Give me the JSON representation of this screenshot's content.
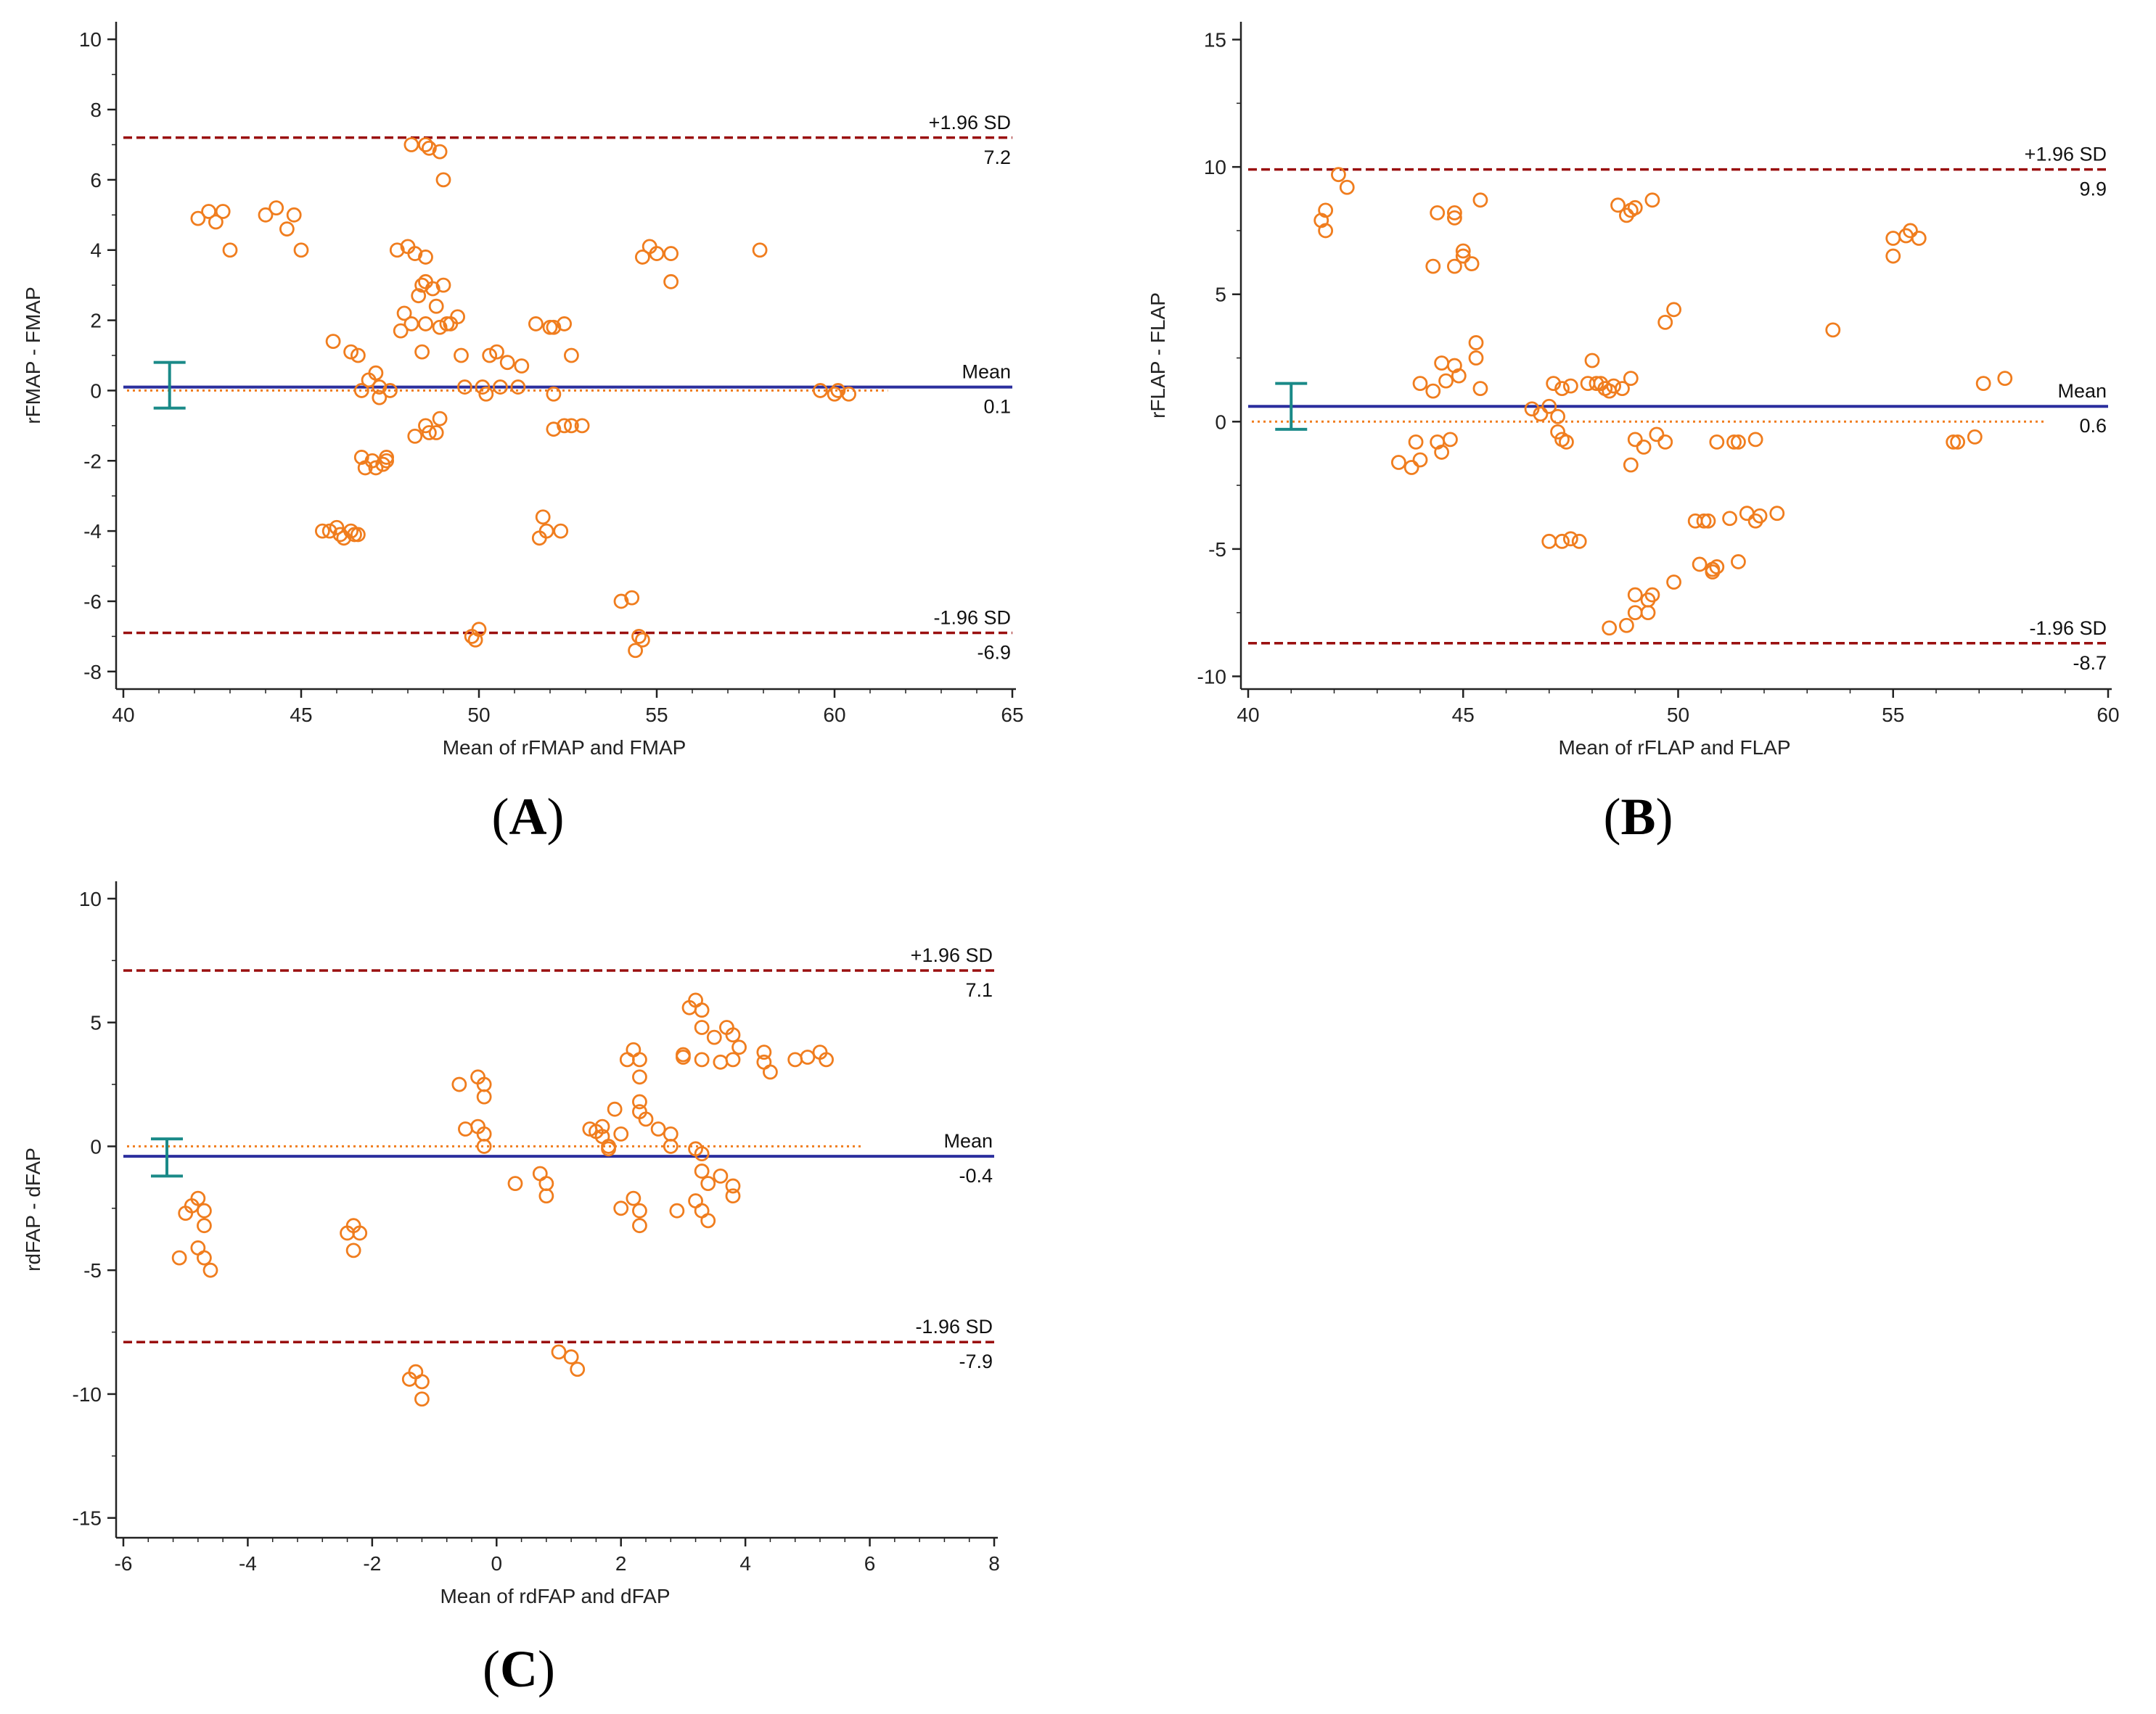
{
  "colors": {
    "points": "#f07d1e",
    "mean_line": "#2b2f9e",
    "zero_line": "#f07d1e",
    "sd_line": "#9a1010",
    "ci_bar": "#1a8a88",
    "axis": "#222222"
  },
  "chart_data": [
    {
      "id": "A",
      "panel_label": "(A)",
      "panel_letter": "A",
      "type": "scatter",
      "subtype": "bland-altman",
      "xlabel": "Mean of rFMAP and FMAP",
      "ylabel": "rFMAP - FMAP",
      "xlim": [
        40,
        65
      ],
      "ylim": [
        -8.5,
        10.5
      ],
      "xticks": [
        40,
        45,
        50,
        55,
        60,
        65
      ],
      "xtick_labels": [
        "40",
        "45",
        "50",
        "55",
        "60",
        "65"
      ],
      "yticks": [
        -8,
        -6,
        -4,
        -2,
        0,
        2,
        4,
        6,
        8,
        10
      ],
      "ytick_labels": [
        "-8",
        "-6",
        "-4",
        "-2",
        "0",
        "2",
        "4",
        "6",
        "8",
        "10"
      ],
      "mean": 0.1,
      "mean_title": "Mean",
      "mean_value": "0.1",
      "upper_loa": 7.2,
      "upper_title": "+1.96 SD",
      "upper_value": "7.2",
      "lower_loa": -6.9,
      "lower_title": "-1.96 SD",
      "lower_value": "-6.9",
      "zero_line_end_x": 61.5,
      "ci": {
        "x": 41.3,
        "low": -0.5,
        "high": 0.8
      },
      "points": [
        [
          42.1,
          4.9
        ],
        [
          42.4,
          5.1
        ],
        [
          42.6,
          4.8
        ],
        [
          42.8,
          5.1
        ],
        [
          43.0,
          4.0
        ],
        [
          44.0,
          5.0
        ],
        [
          44.3,
          5.2
        ],
        [
          44.6,
          4.6
        ],
        [
          44.8,
          5.0
        ],
        [
          45.0,
          4.0
        ],
        [
          45.6,
          -4.0
        ],
        [
          45.8,
          -4.0
        ],
        [
          45.9,
          1.4
        ],
        [
          46.0,
          -3.9
        ],
        [
          46.1,
          -4.1
        ],
        [
          46.2,
          -4.2
        ],
        [
          46.4,
          -4.0
        ],
        [
          46.5,
          -4.1
        ],
        [
          46.4,
          1.1
        ],
        [
          46.6,
          -4.1
        ],
        [
          46.6,
          1.0
        ],
        [
          46.7,
          -1.9
        ],
        [
          46.8,
          -2.2
        ],
        [
          46.7,
          0.0
        ],
        [
          46.9,
          0.3
        ],
        [
          47.0,
          -2.0
        ],
        [
          47.1,
          -2.2
        ],
        [
          47.1,
          0.5
        ],
        [
          47.2,
          -0.2
        ],
        [
          47.2,
          0.1
        ],
        [
          47.3,
          -2.1
        ],
        [
          47.4,
          -2.0
        ],
        [
          47.4,
          -1.9
        ],
        [
          47.5,
          0.0
        ],
        [
          47.7,
          4.0
        ],
        [
          47.8,
          1.7
        ],
        [
          47.9,
          2.2
        ],
        [
          48.0,
          4.1
        ],
        [
          48.1,
          1.9
        ],
        [
          48.2,
          3.9
        ],
        [
          48.2,
          -1.3
        ],
        [
          48.3,
          2.7
        ],
        [
          48.4,
          1.1
        ],
        [
          48.4,
          3.0
        ],
        [
          48.5,
          3.8
        ],
        [
          48.5,
          1.9
        ],
        [
          48.5,
          -1.0
        ],
        [
          48.6,
          -1.2
        ],
        [
          48.5,
          3.1
        ],
        [
          48.7,
          2.9
        ],
        [
          48.8,
          -1.2
        ],
        [
          48.8,
          2.4
        ],
        [
          48.9,
          -0.8
        ],
        [
          48.9,
          1.8
        ],
        [
          49.0,
          3.0
        ],
        [
          49.0,
          6.0
        ],
        [
          49.1,
          1.9
        ],
        [
          49.2,
          1.9
        ],
        [
          48.1,
          7.0
        ],
        [
          48.5,
          7.0
        ],
        [
          48.9,
          6.8
        ],
        [
          48.6,
          6.9
        ],
        [
          49.4,
          2.1
        ],
        [
          49.5,
          1.0
        ],
        [
          49.6,
          0.1
        ],
        [
          49.8,
          -7.0
        ],
        [
          49.9,
          -7.1
        ],
        [
          50.0,
          -6.8
        ],
        [
          50.1,
          0.1
        ],
        [
          50.2,
          -0.1
        ],
        [
          50.3,
          1.0
        ],
        [
          50.5,
          1.1
        ],
        [
          50.6,
          0.1
        ],
        [
          50.8,
          0.8
        ],
        [
          51.1,
          0.1
        ],
        [
          51.2,
          0.7
        ],
        [
          51.6,
          1.9
        ],
        [
          51.7,
          -4.2
        ],
        [
          51.8,
          -3.6
        ],
        [
          51.9,
          -4.0
        ],
        [
          52.0,
          1.8
        ],
        [
          52.1,
          1.8
        ],
        [
          52.1,
          -0.1
        ],
        [
          52.1,
          -1.1
        ],
        [
          52.3,
          -4.0
        ],
        [
          52.4,
          1.9
        ],
        [
          52.4,
          -1.0
        ],
        [
          52.6,
          1.0
        ],
        [
          52.6,
          -1.0
        ],
        [
          52.9,
          -1.0
        ],
        [
          54.0,
          -6.0
        ],
        [
          54.3,
          -5.9
        ],
        [
          54.4,
          -7.4
        ],
        [
          54.5,
          -7.0
        ],
        [
          54.6,
          -7.1
        ],
        [
          54.6,
          3.8
        ],
        [
          54.8,
          4.1
        ],
        [
          55.0,
          3.9
        ],
        [
          55.4,
          3.9
        ],
        [
          55.4,
          3.1
        ],
        [
          57.9,
          4.0
        ],
        [
          59.6,
          0.0
        ],
        [
          60.0,
          -0.1
        ],
        [
          60.1,
          0.0
        ],
        [
          60.4,
          -0.1
        ]
      ]
    },
    {
      "id": "B",
      "panel_label": "(B)",
      "panel_letter": "B",
      "type": "scatter",
      "subtype": "bland-altman",
      "xlabel": "Mean of rFLAP and FLAP",
      "ylabel": "rFLAP - FLAP",
      "xlim": [
        40,
        60
      ],
      "ylim": [
        -10.5,
        15.7
      ],
      "xticks": [
        40,
        45,
        50,
        55,
        60
      ],
      "xtick_labels": [
        "40",
        "45",
        "50",
        "55",
        "60"
      ],
      "yticks": [
        -10,
        -5,
        0,
        5,
        10,
        15
      ],
      "ytick_labels": [
        "-10",
        "-5",
        "0",
        "5",
        "10",
        "15"
      ],
      "mean": 0.6,
      "mean_title": "Mean",
      "mean_value": "0.6",
      "upper_loa": 9.9,
      "upper_title": "+1.96 SD",
      "upper_value": "9.9",
      "lower_loa": -8.7,
      "lower_title": "-1.96 SD",
      "lower_value": "-8.7",
      "zero_line_end_x": 58.5,
      "ci": {
        "x": 41.0,
        "low": -0.3,
        "high": 1.5
      },
      "points": [
        [
          41.7,
          7.9
        ],
        [
          41.8,
          8.3
        ],
        [
          41.8,
          7.5
        ],
        [
          42.1,
          9.7
        ],
        [
          42.3,
          9.2
        ],
        [
          43.5,
          -1.6
        ],
        [
          43.8,
          -1.8
        ],
        [
          43.9,
          -0.8
        ],
        [
          44.0,
          -1.5
        ],
        [
          44.0,
          1.5
        ],
        [
          44.3,
          1.2
        ],
        [
          44.3,
          6.1
        ],
        [
          44.4,
          -0.8
        ],
        [
          44.4,
          8.2
        ],
        [
          44.5,
          -1.2
        ],
        [
          44.5,
          2.3
        ],
        [
          44.6,
          1.6
        ],
        [
          44.7,
          -0.7
        ],
        [
          44.8,
          2.2
        ],
        [
          44.8,
          6.1
        ],
        [
          44.8,
          8.0
        ],
        [
          44.8,
          8.2
        ],
        [
          44.9,
          1.8
        ],
        [
          45.0,
          6.5
        ],
        [
          45.0,
          6.7
        ],
        [
          45.2,
          6.2
        ],
        [
          45.3,
          2.5
        ],
        [
          45.3,
          3.1
        ],
        [
          45.4,
          1.3
        ],
        [
          45.4,
          8.7
        ],
        [
          46.6,
          0.5
        ],
        [
          46.8,
          0.3
        ],
        [
          47.0,
          -4.7
        ],
        [
          47.0,
          0.6
        ],
        [
          47.1,
          1.5
        ],
        [
          47.2,
          -0.4
        ],
        [
          47.2,
          0.2
        ],
        [
          47.3,
          -0.7
        ],
        [
          47.3,
          1.3
        ],
        [
          47.3,
          -4.7
        ],
        [
          47.4,
          -0.8
        ],
        [
          47.5,
          -4.6
        ],
        [
          47.5,
          1.4
        ],
        [
          47.7,
          -4.7
        ],
        [
          47.9,
          1.5
        ],
        [
          48.0,
          2.4
        ],
        [
          48.1,
          1.5
        ],
        [
          48.2,
          1.5
        ],
        [
          48.3,
          1.3
        ],
        [
          48.4,
          1.2
        ],
        [
          48.4,
          -8.1
        ],
        [
          48.5,
          1.4
        ],
        [
          48.6,
          8.5
        ],
        [
          48.7,
          1.3
        ],
        [
          48.8,
          8.1
        ],
        [
          48.8,
          -8.0
        ],
        [
          48.9,
          -1.7
        ],
        [
          48.9,
          1.7
        ],
        [
          48.9,
          8.3
        ],
        [
          49.0,
          -6.8
        ],
        [
          49.0,
          -7.5
        ],
        [
          49.0,
          -0.7
        ],
        [
          49.0,
          8.4
        ],
        [
          49.2,
          -1.0
        ],
        [
          49.3,
          -7.0
        ],
        [
          49.3,
          -7.5
        ],
        [
          49.4,
          -6.8
        ],
        [
          49.4,
          8.7
        ],
        [
          49.5,
          -0.5
        ],
        [
          49.7,
          3.9
        ],
        [
          49.7,
          -0.8
        ],
        [
          49.9,
          4.4
        ],
        [
          49.9,
          -6.3
        ],
        [
          50.4,
          -3.9
        ],
        [
          50.5,
          -5.6
        ],
        [
          50.6,
          -3.9
        ],
        [
          50.7,
          -3.9
        ],
        [
          50.8,
          -5.8
        ],
        [
          50.8,
          -5.9
        ],
        [
          50.9,
          -5.7
        ],
        [
          50.9,
          -0.8
        ],
        [
          51.2,
          -3.8
        ],
        [
          51.3,
          -0.8
        ],
        [
          51.4,
          -0.8
        ],
        [
          51.4,
          -5.5
        ],
        [
          51.6,
          -3.6
        ],
        [
          51.8,
          -3.9
        ],
        [
          51.8,
          -0.7
        ],
        [
          51.9,
          -3.7
        ],
        [
          52.3,
          -3.6
        ],
        [
          53.6,
          3.6
        ],
        [
          55.0,
          7.2
        ],
        [
          55.0,
          6.5
        ],
        [
          55.3,
          7.3
        ],
        [
          55.4,
          7.5
        ],
        [
          55.6,
          7.2
        ],
        [
          56.4,
          -0.8
        ],
        [
          56.5,
          -0.8
        ],
        [
          56.9,
          -0.6
        ],
        [
          57.1,
          1.5
        ],
        [
          57.6,
          1.7
        ]
      ]
    },
    {
      "id": "C",
      "panel_label": "(C)",
      "panel_letter": "C",
      "type": "scatter",
      "subtype": "bland-altman",
      "xlabel": "Mean of rdFAP and dFAP",
      "ylabel": "rdFAP - dFAP",
      "xlim": [
        -6,
        8
      ],
      "ylim": [
        -15.8,
        10.7
      ],
      "xticks": [
        -6,
        -4,
        -2,
        0,
        2,
        4,
        6,
        8
      ],
      "xtick_labels": [
        "-6",
        "-4",
        "-2",
        "0",
        "2",
        "4",
        "6",
        "8"
      ],
      "yticks": [
        -15,
        -10,
        -5,
        0,
        5,
        10
      ],
      "ytick_labels": [
        "-15",
        "-10",
        "-5",
        "0",
        "5",
        "10"
      ],
      "mean": -0.4,
      "mean_title": "Mean",
      "mean_value": "-0.4",
      "upper_loa": 7.1,
      "upper_title": "+1.96 SD",
      "upper_value": "7.1",
      "lower_loa": -7.9,
      "lower_title": "-1.96 SD",
      "lower_value": "-7.9",
      "zero_line_end_x": 5.9,
      "ci": {
        "x": -5.3,
        "low": -1.2,
        "high": 0.3
      },
      "points": [
        [
          -5.1,
          -4.5
        ],
        [
          -5.0,
          -2.7
        ],
        [
          -4.9,
          -2.4
        ],
        [
          -4.8,
          -2.1
        ],
        [
          -4.8,
          -4.1
        ],
        [
          -4.7,
          -2.6
        ],
        [
          -4.7,
          -3.2
        ],
        [
          -4.7,
          -4.5
        ],
        [
          -4.6,
          -5.0
        ],
        [
          -2.4,
          -3.5
        ],
        [
          -2.3,
          -3.2
        ],
        [
          -2.3,
          -4.2
        ],
        [
          -2.2,
          -3.5
        ],
        [
          -1.4,
          -9.4
        ],
        [
          -1.3,
          -9.1
        ],
        [
          -1.2,
          -9.5
        ],
        [
          -1.2,
          -10.2
        ],
        [
          -0.6,
          2.5
        ],
        [
          -0.5,
          0.7
        ],
        [
          -0.3,
          0.8
        ],
        [
          -0.3,
          2.8
        ],
        [
          -0.2,
          2.5
        ],
        [
          -0.2,
          2.0
        ],
        [
          -0.2,
          0.5
        ],
        [
          -0.2,
          0.0
        ],
        [
          0.3,
          -1.5
        ],
        [
          0.7,
          -1.1
        ],
        [
          0.8,
          -1.5
        ],
        [
          0.8,
          -2.0
        ],
        [
          1.0,
          -8.3
        ],
        [
          1.2,
          -8.5
        ],
        [
          1.3,
          -9.0
        ],
        [
          1.5,
          0.7
        ],
        [
          1.6,
          0.6
        ],
        [
          1.7,
          0.8
        ],
        [
          1.7,
          0.4
        ],
        [
          1.8,
          0.0
        ],
        [
          1.8,
          -0.1
        ],
        [
          1.9,
          1.5
        ],
        [
          2.0,
          0.5
        ],
        [
          2.0,
          -2.5
        ],
        [
          2.1,
          3.5
        ],
        [
          2.2,
          3.9
        ],
        [
          2.2,
          -2.1
        ],
        [
          2.3,
          1.8
        ],
        [
          2.3,
          3.5
        ],
        [
          2.3,
          2.8
        ],
        [
          2.3,
          1.4
        ],
        [
          2.3,
          -2.6
        ],
        [
          2.3,
          -3.2
        ],
        [
          2.4,
          1.1
        ],
        [
          2.6,
          0.7
        ],
        [
          2.8,
          0.5
        ],
        [
          2.8,
          0.0
        ],
        [
          2.9,
          -2.6
        ],
        [
          3.0,
          3.7
        ],
        [
          3.0,
          3.6
        ],
        [
          3.1,
          5.6
        ],
        [
          3.2,
          5.9
        ],
        [
          3.2,
          -0.1
        ],
        [
          3.2,
          -2.2
        ],
        [
          3.3,
          5.5
        ],
        [
          3.3,
          4.8
        ],
        [
          3.3,
          3.5
        ],
        [
          3.3,
          -0.3
        ],
        [
          3.3,
          -1.0
        ],
        [
          3.3,
          -2.6
        ],
        [
          3.4,
          -3.0
        ],
        [
          3.4,
          -1.5
        ],
        [
          3.5,
          4.4
        ],
        [
          3.6,
          3.4
        ],
        [
          3.6,
          -1.2
        ],
        [
          3.7,
          4.8
        ],
        [
          3.8,
          4.5
        ],
        [
          3.8,
          3.5
        ],
        [
          3.8,
          -1.6
        ],
        [
          3.8,
          -2.0
        ],
        [
          3.9,
          4.0
        ],
        [
          4.3,
          3.8
        ],
        [
          4.3,
          3.4
        ],
        [
          4.4,
          3.0
        ],
        [
          4.8,
          3.5
        ],
        [
          5.0,
          3.6
        ],
        [
          5.2,
          3.8
        ],
        [
          5.3,
          3.5
        ]
      ]
    }
  ]
}
